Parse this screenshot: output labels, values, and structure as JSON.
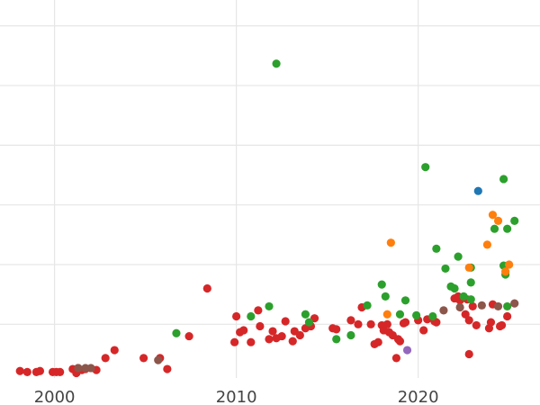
{
  "chart_data": {
    "type": "scatter",
    "title": "",
    "xlabel": "",
    "ylabel": "",
    "xlim": [
      1997,
      2026.7
    ],
    "ylim": [
      -2,
      188
    ],
    "x_ticks": [
      2000,
      2010,
      2020
    ],
    "x_tick_labels": [
      "2000",
      "2010",
      "2020"
    ],
    "y_gridlines": [
      25,
      55,
      85,
      115,
      145,
      175
    ],
    "grid": true,
    "legend": "none",
    "series": [
      {
        "color": "#d62728",
        "points": [
          [
            1998.1,
            1.5
          ],
          [
            1998.5,
            1
          ],
          [
            1999.0,
            1
          ],
          [
            1999.2,
            1.5
          ],
          [
            1999.9,
            1
          ],
          [
            2000.1,
            1
          ],
          [
            2000.3,
            1
          ],
          [
            2001.0,
            2.5
          ],
          [
            2001.2,
            0.5
          ],
          [
            2001.3,
            3
          ],
          [
            2001.5,
            2
          ],
          [
            2001.7,
            2.5
          ],
          [
            2002.3,
            2
          ],
          [
            2002.8,
            8
          ],
          [
            2003.3,
            12
          ],
          [
            2004.9,
            8
          ],
          [
            2005.8,
            8
          ],
          [
            2006.2,
            2.5
          ],
          [
            2007.4,
            19
          ],
          [
            2008.4,
            43
          ],
          [
            2009.9,
            16
          ],
          [
            2010.0,
            29
          ],
          [
            2010.2,
            21
          ],
          [
            2010.4,
            22
          ],
          [
            2010.8,
            16
          ],
          [
            2011.2,
            32
          ],
          [
            2011.3,
            24
          ],
          [
            2011.8,
            17.5
          ],
          [
            2012.0,
            21.5
          ],
          [
            2012.2,
            18
          ],
          [
            2012.5,
            19
          ],
          [
            2012.7,
            26.5
          ],
          [
            2013.1,
            16.5
          ],
          [
            2013.2,
            21.5
          ],
          [
            2013.5,
            19.5
          ],
          [
            2013.8,
            23
          ],
          [
            2014.1,
            24
          ],
          [
            2014.3,
            28
          ],
          [
            2015.3,
            23
          ],
          [
            2015.5,
            22.5
          ],
          [
            2016.3,
            27
          ],
          [
            2016.7,
            25
          ],
          [
            2016.9,
            33.5
          ],
          [
            2017.4,
            25
          ],
          [
            2017.6,
            15
          ],
          [
            2017.8,
            16
          ],
          [
            2018.0,
            24.5
          ],
          [
            2018.1,
            22
          ],
          [
            2018.3,
            25
          ],
          [
            2018.4,
            21
          ],
          [
            2018.6,
            19.5
          ],
          [
            2018.8,
            8
          ],
          [
            2018.9,
            17.5
          ],
          [
            2019.0,
            16.5
          ],
          [
            2019.2,
            25.5
          ],
          [
            2019.3,
            26
          ],
          [
            2020.0,
            27
          ],
          [
            2020.3,
            22
          ],
          [
            2020.5,
            27.5
          ],
          [
            2020.9,
            26.5
          ],
          [
            2021.0,
            26
          ],
          [
            2022.0,
            38
          ],
          [
            2022.2,
            39
          ],
          [
            2022.3,
            37
          ],
          [
            2022.6,
            30
          ],
          [
            2022.7,
            37.5
          ],
          [
            2022.8,
            10
          ],
          [
            2022.8,
            27
          ],
          [
            2023.0,
            34
          ],
          [
            2023.2,
            24.5
          ],
          [
            2023.9,
            23
          ],
          [
            2024.0,
            26
          ],
          [
            2024.1,
            35
          ],
          [
            2024.5,
            24
          ],
          [
            2024.6,
            24.5
          ],
          [
            2024.9,
            29
          ]
        ]
      },
      {
        "color": "#2ca02c",
        "points": [
          [
            2006.7,
            20.5
          ],
          [
            2010.8,
            29
          ],
          [
            2011.8,
            34
          ],
          [
            2012.2,
            156
          ],
          [
            2013.8,
            30
          ],
          [
            2014.0,
            26
          ],
          [
            2015.5,
            17.5
          ],
          [
            2016.3,
            19.5
          ],
          [
            2017.2,
            34.5
          ],
          [
            2018.0,
            45
          ],
          [
            2018.2,
            39
          ],
          [
            2019.0,
            30
          ],
          [
            2019.3,
            37
          ],
          [
            2019.9,
            29.5
          ],
          [
            2020.4,
            104
          ],
          [
            2020.8,
            29
          ],
          [
            2021.0,
            63
          ],
          [
            2021.5,
            53
          ],
          [
            2021.8,
            44
          ],
          [
            2022.0,
            43
          ],
          [
            2022.2,
            59
          ],
          [
            2022.5,
            39
          ],
          [
            2022.9,
            46
          ],
          [
            2022.9,
            53.5
          ],
          [
            2022.9,
            37.5
          ],
          [
            2024.2,
            73
          ],
          [
            2024.7,
            98
          ],
          [
            2024.7,
            54.5
          ],
          [
            2024.8,
            50
          ],
          [
            2024.9,
            73
          ],
          [
            2024.9,
            34
          ],
          [
            2025.3,
            77
          ]
        ]
      },
      {
        "color": "#8c564b",
        "points": [
          [
            2001.3,
            3
          ],
          [
            2001.7,
            3
          ],
          [
            2002.0,
            3
          ],
          [
            2005.7,
            7
          ],
          [
            2021.4,
            32
          ],
          [
            2022.3,
            33.5
          ],
          [
            2023.5,
            34.5
          ],
          [
            2024.4,
            34
          ],
          [
            2025.3,
            35.5
          ]
        ]
      },
      {
        "color": "#ff7f0e",
        "points": [
          [
            2018.3,
            30
          ],
          [
            2018.5,
            66
          ],
          [
            2022.8,
            53.5
          ],
          [
            2023.8,
            65
          ],
          [
            2024.1,
            80
          ],
          [
            2024.4,
            77
          ],
          [
            2024.8,
            51.5
          ],
          [
            2025.0,
            55
          ]
        ]
      },
      {
        "color": "#1f77b4",
        "points": [
          [
            2023.3,
            92
          ]
        ]
      },
      {
        "color": "#9467bd",
        "points": [
          [
            2019.4,
            12
          ]
        ]
      }
    ]
  }
}
